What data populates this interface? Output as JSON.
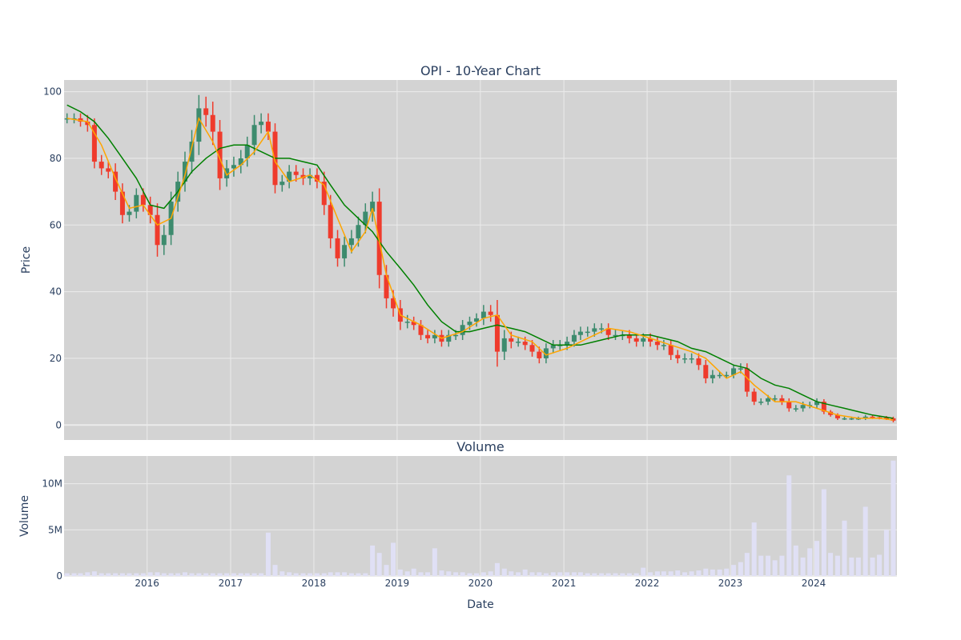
{
  "colors": {
    "plot_bg": "#d3d3d3",
    "grid": "#ebebeb",
    "up": "#3d8b6e",
    "down": "#ef3b2c",
    "ma_short": "#ffa500",
    "ma_long": "#008000",
    "volume": "#e0e0f5",
    "text": "#2a3f5f"
  },
  "chart_data": [
    {
      "type": "candlestick",
      "title": "OPI - 10-Year Chart",
      "xlabel": "",
      "ylabel": "Price",
      "xlim": [
        "2015-01-02",
        "2024-12-31"
      ],
      "ylim": [
        -4.5,
        103.5
      ],
      "y_ticks": [
        0,
        20,
        40,
        60,
        80,
        100
      ],
      "grid": true,
      "series": [
        {
          "kind": "price",
          "x": [
            "2015-01",
            "2015-02",
            "2015-03",
            "2015-04",
            "2015-05",
            "2015-06",
            "2015-07",
            "2015-08",
            "2015-09",
            "2015-10",
            "2015-11",
            "2015-12",
            "2016-01",
            "2016-02",
            "2016-03",
            "2016-04",
            "2016-05",
            "2016-06",
            "2016-07",
            "2016-08",
            "2016-09",
            "2016-10",
            "2016-11",
            "2016-12",
            "2017-01",
            "2017-02",
            "2017-03",
            "2017-04",
            "2017-05",
            "2017-06",
            "2017-07",
            "2017-08",
            "2017-09",
            "2017-10",
            "2017-11",
            "2017-12",
            "2018-01",
            "2018-02",
            "2018-03",
            "2018-04",
            "2018-05",
            "2018-06",
            "2018-07",
            "2018-08",
            "2018-09",
            "2018-10",
            "2018-11",
            "2018-12",
            "2019-01",
            "2019-02",
            "2019-03",
            "2019-04",
            "2019-05",
            "2019-06",
            "2019-07",
            "2019-08",
            "2019-09",
            "2019-10",
            "2019-11",
            "2019-12",
            "2020-01",
            "2020-02",
            "2020-03",
            "2020-04",
            "2020-05",
            "2020-06",
            "2020-07",
            "2020-08",
            "2020-09",
            "2020-10",
            "2020-11",
            "2020-12",
            "2021-01",
            "2021-02",
            "2021-03",
            "2021-04",
            "2021-05",
            "2021-06",
            "2021-07",
            "2021-08",
            "2021-09",
            "2021-10",
            "2021-11",
            "2021-12",
            "2022-01",
            "2022-02",
            "2022-03",
            "2022-04",
            "2022-05",
            "2022-06",
            "2022-07",
            "2022-08",
            "2022-09",
            "2022-10",
            "2022-11",
            "2022-12",
            "2023-01",
            "2023-02",
            "2023-03",
            "2023-04",
            "2023-05",
            "2023-06",
            "2023-07",
            "2023-08",
            "2023-09",
            "2023-10",
            "2023-11",
            "2023-12",
            "2024-01",
            "2024-02",
            "2024-03",
            "2024-04",
            "2024-05",
            "2024-06",
            "2024-07",
            "2024-08",
            "2024-09",
            "2024-10",
            "2024-11",
            "2024-12"
          ],
          "close": [
            92,
            92,
            91,
            90,
            79,
            77,
            76,
            70,
            63,
            64,
            69,
            66,
            63,
            54,
            57,
            67,
            73,
            79,
            85,
            95,
            93,
            88,
            74,
            77,
            78,
            80,
            84,
            90,
            91,
            88,
            72,
            73,
            76,
            75,
            74,
            75,
            73,
            66,
            56,
            50,
            54,
            56,
            60,
            64,
            67,
            45,
            38,
            35,
            31,
            31,
            30,
            27,
            26,
            27,
            25,
            27,
            27,
            30,
            31,
            32,
            34,
            33,
            22,
            26,
            25,
            25,
            24,
            22,
            20,
            23,
            24,
            24,
            25,
            27,
            28,
            28,
            29,
            29,
            27,
            27,
            27,
            26,
            25,
            26,
            25,
            24,
            24,
            21,
            20,
            20,
            20,
            18,
            14,
            15,
            15,
            15,
            17,
            17,
            10,
            7,
            7,
            8,
            8,
            7,
            5,
            5,
            6,
            6,
            7,
            4,
            3,
            2,
            2,
            2,
            2,
            2.5,
            2.3,
            2.2,
            2,
            1.3
          ],
          "range": [
            3,
            3,
            3,
            4,
            4,
            4,
            4,
            5,
            5,
            4,
            4,
            4,
            5,
            7,
            6,
            6,
            6,
            6,
            7,
            8,
            7,
            8,
            7,
            5,
            5,
            5,
            5,
            6,
            5,
            5,
            5,
            4,
            4,
            4,
            4,
            4,
            4,
            6,
            6,
            5,
            5,
            5,
            5,
            5,
            6,
            8,
            6,
            5,
            5,
            4,
            3,
            3,
            3,
            3,
            3,
            3,
            3,
            3,
            3,
            3,
            4,
            4,
            9,
            5,
            4,
            3,
            3,
            3,
            3,
            3,
            3,
            3,
            3,
            3,
            3,
            3,
            3,
            3,
            3,
            3,
            3,
            3,
            3,
            3,
            3,
            3,
            3,
            3,
            3,
            3,
            3,
            3,
            3,
            3,
            2,
            2,
            2,
            3,
            3,
            2,
            2,
            2,
            2,
            2,
            2,
            2,
            2,
            2,
            2,
            1.5,
            1,
            1,
            1,
            1,
            1,
            1,
            1,
            1,
            1,
            1
          ]
        },
        {
          "kind": "ma_short",
          "x": [
            "2015-01",
            "2015-04",
            "2015-06",
            "2015-08",
            "2015-10",
            "2015-12",
            "2016-02",
            "2016-04",
            "2016-06",
            "2016-08",
            "2016-10",
            "2016-12",
            "2017-02",
            "2017-04",
            "2017-06",
            "2017-07",
            "2017-09",
            "2017-12",
            "2018-02",
            "2018-04",
            "2018-06",
            "2018-08",
            "2018-09",
            "2018-11",
            "2019-01",
            "2019-04",
            "2019-07",
            "2019-10",
            "2020-01",
            "2020-03",
            "2020-05",
            "2020-08",
            "2020-10",
            "2021-01",
            "2021-04",
            "2021-07",
            "2021-10",
            "2022-01",
            "2022-04",
            "2022-07",
            "2022-09",
            "2022-12",
            "2023-02",
            "2023-04",
            "2023-07",
            "2023-10",
            "2024-01",
            "2024-04",
            "2024-07",
            "2024-10",
            "2024-12"
          ],
          "values": [
            92,
            91,
            84,
            74,
            65,
            66,
            60,
            62,
            75,
            92,
            85,
            75,
            78,
            82,
            88,
            79,
            73,
            75,
            72,
            62,
            52,
            58,
            65,
            45,
            33,
            30,
            26,
            28,
            32,
            33,
            27,
            25,
            21,
            23,
            26,
            29,
            28,
            26,
            24,
            22,
            20,
            14,
            16,
            12,
            7,
            7,
            5,
            3,
            2,
            2,
            1.5
          ]
        },
        {
          "kind": "ma_long",
          "x": [
            "2015-01",
            "2015-03",
            "2015-05",
            "2015-07",
            "2015-09",
            "2015-11",
            "2016-01",
            "2016-03",
            "2016-05",
            "2016-07",
            "2016-09",
            "2016-11",
            "2017-01",
            "2017-03",
            "2017-05",
            "2017-07",
            "2017-09",
            "2017-11",
            "2018-01",
            "2018-03",
            "2018-05",
            "2018-07",
            "2018-09",
            "2018-11",
            "2019-01",
            "2019-03",
            "2019-05",
            "2019-07",
            "2019-09",
            "2019-11",
            "2020-01",
            "2020-03",
            "2020-05",
            "2020-07",
            "2020-09",
            "2020-11",
            "2021-01",
            "2021-03",
            "2021-05",
            "2021-07",
            "2021-09",
            "2021-11",
            "2022-01",
            "2022-03",
            "2022-05",
            "2022-07",
            "2022-09",
            "2022-11",
            "2023-01",
            "2023-03",
            "2023-05",
            "2023-07",
            "2023-09",
            "2023-11",
            "2024-01",
            "2024-03",
            "2024-05",
            "2024-07",
            "2024-09",
            "2024-12"
          ],
          "values": [
            96,
            94,
            91,
            86,
            80,
            74,
            66,
            65,
            70,
            76,
            80,
            83,
            84,
            84,
            82,
            80,
            80,
            79,
            78,
            72,
            66,
            62,
            58,
            52,
            47,
            42,
            36,
            31,
            28,
            28,
            29,
            30,
            29,
            28,
            26,
            24,
            24,
            24,
            25,
            26,
            27,
            27,
            27,
            26,
            25,
            23,
            22,
            20,
            18,
            17,
            14,
            12,
            11,
            9,
            7,
            6,
            5,
            4,
            3,
            2
          ]
        }
      ]
    },
    {
      "type": "bar",
      "title": "Volume",
      "xlabel": "Date",
      "ylabel": "Volume",
      "xlim": [
        "2015-01-02",
        "2024-12-31"
      ],
      "ylim": [
        0,
        13000000
      ],
      "y_ticks": [
        0,
        5000000,
        10000000
      ],
      "y_tick_labels": [
        "0",
        "5M",
        "10M"
      ],
      "x_tick_labels": [
        "2016",
        "2017",
        "2018",
        "2019",
        "2020",
        "2021",
        "2022",
        "2023",
        "2024"
      ],
      "grid": true,
      "x": [
        "2015-01",
        "2015-02",
        "2015-03",
        "2015-04",
        "2015-05",
        "2015-06",
        "2015-07",
        "2015-08",
        "2015-09",
        "2015-10",
        "2015-11",
        "2015-12",
        "2016-01",
        "2016-02",
        "2016-03",
        "2016-04",
        "2016-05",
        "2016-06",
        "2016-07",
        "2016-08",
        "2016-09",
        "2016-10",
        "2016-11",
        "2016-12",
        "2017-01",
        "2017-02",
        "2017-03",
        "2017-04",
        "2017-05",
        "2017-06",
        "2017-07",
        "2017-08",
        "2017-09",
        "2017-10",
        "2017-11",
        "2017-12",
        "2018-01",
        "2018-02",
        "2018-03",
        "2018-04",
        "2018-05",
        "2018-06",
        "2018-07",
        "2018-08",
        "2018-09",
        "2018-10",
        "2018-11",
        "2018-12",
        "2019-01",
        "2019-02",
        "2019-03",
        "2019-04",
        "2019-05",
        "2019-06",
        "2019-07",
        "2019-08",
        "2019-09",
        "2019-10",
        "2019-11",
        "2019-12",
        "2020-01",
        "2020-02",
        "2020-03",
        "2020-04",
        "2020-05",
        "2020-06",
        "2020-07",
        "2020-08",
        "2020-09",
        "2020-10",
        "2020-11",
        "2020-12",
        "2021-01",
        "2021-02",
        "2021-03",
        "2021-04",
        "2021-05",
        "2021-06",
        "2021-07",
        "2021-08",
        "2021-09",
        "2021-10",
        "2021-11",
        "2021-12",
        "2022-01",
        "2022-02",
        "2022-03",
        "2022-04",
        "2022-05",
        "2022-06",
        "2022-07",
        "2022-08",
        "2022-09",
        "2022-10",
        "2022-11",
        "2022-12",
        "2023-01",
        "2023-02",
        "2023-03",
        "2023-04",
        "2023-05",
        "2023-06",
        "2023-07",
        "2023-08",
        "2023-09",
        "2023-10",
        "2023-11",
        "2023-12",
        "2024-01",
        "2024-02",
        "2024-03",
        "2024-04",
        "2024-05",
        "2024-06",
        "2024-07",
        "2024-08",
        "2024-09",
        "2024-10",
        "2024-11",
        "2024-12"
      ],
      "values": [
        300000,
        300000,
        300000,
        400000,
        500000,
        300000,
        300000,
        300000,
        300000,
        300000,
        300000,
        300000,
        400000,
        400000,
        300000,
        300000,
        300000,
        400000,
        300000,
        300000,
        300000,
        300000,
        300000,
        300000,
        300000,
        300000,
        300000,
        300000,
        300000,
        4700000,
        1200000,
        500000,
        400000,
        300000,
        300000,
        300000,
        300000,
        300000,
        400000,
        400000,
        400000,
        300000,
        300000,
        300000,
        3300000,
        2500000,
        1200000,
        3600000,
        700000,
        500000,
        800000,
        400000,
        400000,
        3000000,
        600000,
        500000,
        400000,
        400000,
        300000,
        300000,
        400000,
        500000,
        1400000,
        800000,
        500000,
        400000,
        700000,
        400000,
        400000,
        300000,
        400000,
        400000,
        400000,
        400000,
        400000,
        300000,
        300000,
        300000,
        300000,
        300000,
        300000,
        300000,
        300000,
        900000,
        400000,
        500000,
        500000,
        500000,
        600000,
        400000,
        500000,
        600000,
        800000,
        700000,
        700000,
        800000,
        1200000,
        1500000,
        2500000,
        5800000,
        2200000,
        2200000,
        1700000,
        2200000,
        10900000,
        3300000,
        2000000,
        3000000,
        3800000,
        9400000,
        2500000,
        2200000,
        6000000,
        2000000,
        2000000,
        7500000,
        2000000,
        2300000,
        5000000,
        12500000
      ]
    }
  ]
}
